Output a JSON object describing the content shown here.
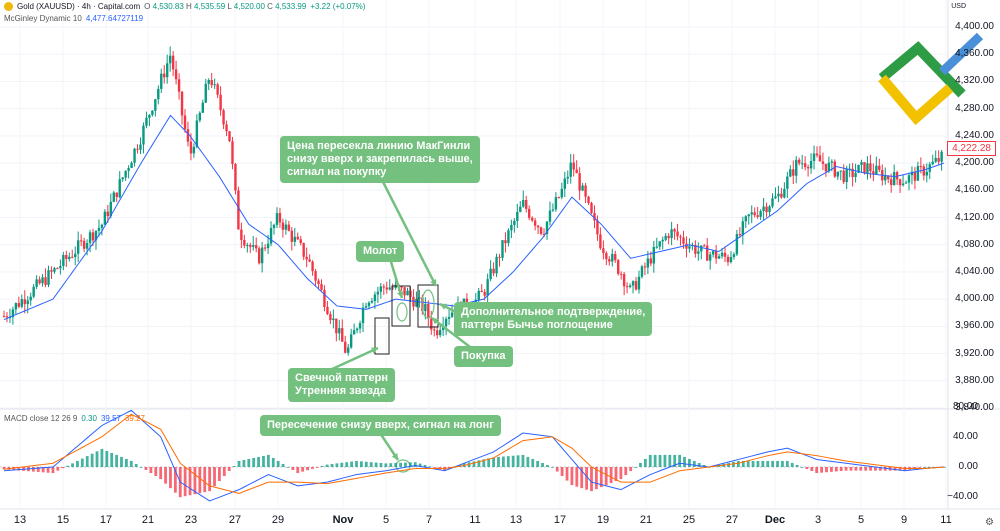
{
  "header": {
    "symbol_title": "Gold (XAUUSD) · 4h · Capital.com",
    "ohlc": [
      {
        "label": "O",
        "value": "4,530.83"
      },
      {
        "label": "H",
        "value": "4,535.59"
      },
      {
        "label": "L",
        "value": "4,520.00"
      },
      {
        "label": "C",
        "value": "4,533.99"
      }
    ],
    "change": "+3.22 (+0.07%)",
    "indicator_name": "McGinley Dynamic 10",
    "indicator_value": "4,477.64727119",
    "macd_name": "MACD close 12 26 9",
    "macd_values": [
      "0.30",
      "39.57",
      "39.27"
    ]
  },
  "currency_label": "USD",
  "current_price": "4,222.28",
  "price_axis": [
    "4,400.00",
    "4,360.00",
    "4,320.00",
    "4,280.00",
    "4,240.00",
    "4,200.00",
    "4,160.00",
    "4,120.00",
    "4,080.00",
    "4,040.00",
    "4,000.00",
    "3,960.00",
    "3,920.00",
    "3,880.00",
    "3,840.00"
  ],
  "macd_axis": [
    "80.00",
    "40.00",
    "0.00",
    "−40.00"
  ],
  "time_axis": [
    {
      "label": "13",
      "bold": false
    },
    {
      "label": "15",
      "bold": false
    },
    {
      "label": "17",
      "bold": false
    },
    {
      "label": "21",
      "bold": false
    },
    {
      "label": "23",
      "bold": false
    },
    {
      "label": "27",
      "bold": false
    },
    {
      "label": "29",
      "bold": false
    },
    {
      "label": "Nov",
      "bold": true
    },
    {
      "label": "5",
      "bold": false
    },
    {
      "label": "7",
      "bold": false
    },
    {
      "label": "11",
      "bold": false
    },
    {
      "label": "13",
      "bold": false
    },
    {
      "label": "17",
      "bold": false
    },
    {
      "label": "19",
      "bold": false
    },
    {
      "label": "21",
      "bold": false
    },
    {
      "label": "25",
      "bold": false
    },
    {
      "label": "27",
      "bold": false
    },
    {
      "label": "Dec",
      "bold": true
    },
    {
      "label": "3",
      "bold": false
    },
    {
      "label": "5",
      "bold": false
    },
    {
      "label": "9",
      "bold": false
    },
    {
      "label": "11",
      "bold": false
    }
  ],
  "annotations": {
    "crossover": "Цена пересекла линию МакГинли\nснизу вверх и закрепилась выше,\nсигнал на покупку",
    "hammer": "Молот",
    "confirmation": "Дополнительное подтверждение,\nпаттерн Бычье поглощение",
    "buy": "Покупка",
    "morning_star": "Свечной паттерн\nУтренняя звезда",
    "macd_cross": "Пересечение снизу вверх, сигнал на лонг"
  },
  "colors": {
    "up": "#089981",
    "down": "#f23645",
    "mcginley": "#2962ff",
    "macd": "#2962ff",
    "signal": "#ff6d00",
    "note": "#73c07f",
    "logo_green": "#2e9b45",
    "logo_yellow": "#f2c200",
    "logo_blue": "#4a90d9"
  },
  "chart_data": [
    {
      "type": "candlestick",
      "title": "Gold (XAUUSD) · 4h · Capital.com",
      "ylim": [
        3840,
        4400
      ],
      "close_path": [
        [
          0,
          3975
        ],
        [
          5,
          4040
        ],
        [
          10,
          4110
        ],
        [
          14,
          4240
        ],
        [
          17,
          4360
        ],
        [
          19,
          4210
        ],
        [
          21,
          4330
        ],
        [
          23,
          4240
        ],
        [
          24,
          4100
        ],
        [
          26,
          4060
        ],
        [
          28,
          4120
        ],
        [
          31,
          4060
        ],
        [
          33,
          3990
        ],
        [
          35,
          3920
        ],
        [
          37,
          4000
        ],
        [
          39,
          4020
        ],
        [
          41,
          4010
        ],
        [
          43,
          3985
        ],
        [
          44,
          3950
        ],
        [
          45,
          3975
        ],
        [
          46,
          3985
        ],
        [
          48,
          3995
        ],
        [
          49,
          4010
        ],
        [
          51,
          4080
        ],
        [
          53,
          4140
        ],
        [
          55,
          4100
        ],
        [
          57,
          4160
        ],
        [
          58,
          4200
        ],
        [
          59,
          4160
        ],
        [
          61,
          4080
        ],
        [
          63,
          4040
        ],
        [
          64,
          4010
        ],
        [
          66,
          4060
        ],
        [
          68,
          4100
        ],
        [
          71,
          4070
        ],
        [
          74,
          4060
        ],
        [
          76,
          4120
        ],
        [
          79,
          4150
        ],
        [
          81,
          4200
        ],
        [
          83,
          4205
        ],
        [
          86,
          4180
        ],
        [
          88,
          4195
        ],
        [
          90,
          4180
        ],
        [
          92,
          4175
        ],
        [
          94,
          4190
        ],
        [
          96,
          4210
        ]
      ],
      "mcginley_dynamic_10": [
        [
          0,
          3970
        ],
        [
          5,
          4000
        ],
        [
          10,
          4100
        ],
        [
          14,
          4200
        ],
        [
          17,
          4270
        ],
        [
          19,
          4240
        ],
        [
          22,
          4180
        ],
        [
          25,
          4110
        ],
        [
          28,
          4080
        ],
        [
          31,
          4030
        ],
        [
          34,
          3990
        ],
        [
          37,
          3985
        ],
        [
          40,
          4000
        ],
        [
          43,
          3995
        ],
        [
          46,
          3990
        ],
        [
          49,
          4000
        ],
        [
          52,
          4040
        ],
        [
          55,
          4090
        ],
        [
          58,
          4150
        ],
        [
          61,
          4110
        ],
        [
          64,
          4060
        ],
        [
          67,
          4070
        ],
        [
          70,
          4080
        ],
        [
          73,
          4070
        ],
        [
          76,
          4100
        ],
        [
          79,
          4130
        ],
        [
          82,
          4170
        ],
        [
          85,
          4195
        ],
        [
          88,
          4185
        ],
        [
          91,
          4180
        ],
        [
          94,
          4190
        ],
        [
          96,
          4200
        ]
      ]
    },
    {
      "type": "bar",
      "title": "MACD close 12 26 9",
      "ylim": [
        -50,
        85
      ],
      "macd_line": [
        [
          0,
          -5
        ],
        [
          5,
          0
        ],
        [
          10,
          55
        ],
        [
          13,
          75
        ],
        [
          16,
          40
        ],
        [
          18,
          -20
        ],
        [
          21,
          -45
        ],
        [
          24,
          -30
        ],
        [
          27,
          -10
        ],
        [
          30,
          -25
        ],
        [
          33,
          -20
        ],
        [
          36,
          -10
        ],
        [
          39,
          -5
        ],
        [
          42,
          2
        ],
        [
          45,
          -5
        ],
        [
          47,
          5
        ],
        [
          50,
          20
        ],
        [
          53,
          45
        ],
        [
          56,
          40
        ],
        [
          58,
          10
        ],
        [
          60,
          -20
        ],
        [
          63,
          -30
        ],
        [
          66,
          -10
        ],
        [
          69,
          5
        ],
        [
          72,
          0
        ],
        [
          75,
          10
        ],
        [
          78,
          20
        ],
        [
          80,
          25
        ],
        [
          83,
          10
        ],
        [
          86,
          5
        ],
        [
          89,
          0
        ],
        [
          92,
          -5
        ],
        [
          94,
          -2
        ],
        [
          96,
          0
        ]
      ],
      "signal_line": [
        [
          0,
          -3
        ],
        [
          5,
          5
        ],
        [
          10,
          40
        ],
        [
          13,
          70
        ],
        [
          16,
          50
        ],
        [
          18,
          5
        ],
        [
          21,
          -25
        ],
        [
          24,
          -35
        ],
        [
          27,
          -20
        ],
        [
          30,
          -20
        ],
        [
          33,
          -22
        ],
        [
          36,
          -15
        ],
        [
          39,
          -8
        ],
        [
          42,
          -2
        ],
        [
          45,
          -2
        ],
        [
          47,
          2
        ],
        [
          50,
          12
        ],
        [
          53,
          35
        ],
        [
          56,
          40
        ],
        [
          58,
          25
        ],
        [
          60,
          0
        ],
        [
          63,
          -20
        ],
        [
          66,
          -20
        ],
        [
          69,
          -5
        ],
        [
          72,
          0
        ],
        [
          75,
          5
        ],
        [
          78,
          15
        ],
        [
          80,
          20
        ],
        [
          83,
          15
        ],
        [
          86,
          8
        ],
        [
          89,
          3
        ],
        [
          92,
          -2
        ],
        [
          94,
          -2
        ],
        [
          96,
          0
        ]
      ]
    }
  ]
}
